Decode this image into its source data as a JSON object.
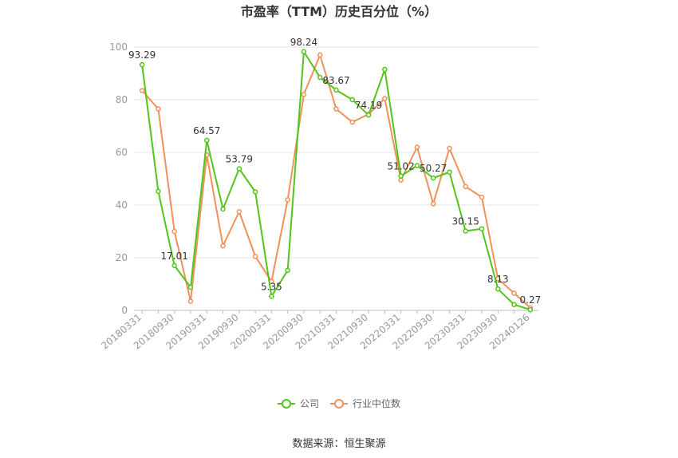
{
  "chart_data": {
    "type": "line",
    "title": "市盈率（TTM）历史百分位（%）",
    "source": "数据来源：恒生聚源",
    "ylim": [
      0,
      100
    ],
    "y_ticks": [
      "0",
      "20",
      "40",
      "60",
      "80",
      "100"
    ],
    "x_tick_labels": [
      "20180331",
      "20180930",
      "20190331",
      "20190930",
      "20200331",
      "20200930",
      "20210331",
      "20210930",
      "20220331",
      "20220930",
      "20230331",
      "20230930",
      "20240126"
    ],
    "x": [
      "20180331",
      "20180630",
      "20180930",
      "20181231",
      "20190331",
      "20190630",
      "20190930",
      "20191231",
      "20200331",
      "20200630",
      "20200930",
      "20201231",
      "20210331",
      "20210630",
      "20210930",
      "20211231",
      "20220331",
      "20220630",
      "20220930",
      "20221231",
      "20230331",
      "20230630",
      "20230930",
      "20231231",
      "20240126"
    ],
    "series": [
      {
        "name": "公司",
        "color": "#52c41a",
        "values": [
          93.29,
          45.2,
          17.01,
          8.8,
          64.57,
          38.5,
          53.79,
          45.0,
          5.35,
          15.2,
          98.24,
          88.5,
          83.67,
          80.0,
          74.19,
          91.5,
          51.02,
          55.0,
          50.27,
          52.5,
          30.15,
          31.0,
          8.13,
          2.2,
          0.27
        ]
      },
      {
        "name": "行业中位数",
        "color": "#f0905a",
        "values": [
          83.5,
          76.5,
          30.0,
          3.5,
          59.0,
          24.5,
          37.5,
          20.5,
          11.0,
          42.0,
          82.0,
          97.0,
          76.5,
          71.5,
          74.5,
          80.5,
          49.5,
          62.0,
          40.5,
          61.5,
          47.0,
          43.0,
          12.0,
          6.5,
          1.0
        ]
      }
    ],
    "data_labels": [
      {
        "series": 0,
        "index": 0,
        "text": "93.29"
      },
      {
        "series": 0,
        "index": 2,
        "text": "17.01"
      },
      {
        "series": 0,
        "index": 4,
        "text": "64.57"
      },
      {
        "series": 0,
        "index": 6,
        "text": "53.79"
      },
      {
        "series": 0,
        "index": 8,
        "text": "5.35"
      },
      {
        "series": 0,
        "index": 10,
        "text": "98.24"
      },
      {
        "series": 0,
        "index": 12,
        "text": "83.67"
      },
      {
        "series": 0,
        "index": 14,
        "text": "74.19"
      },
      {
        "series": 0,
        "index": 16,
        "text": "51.02"
      },
      {
        "series": 0,
        "index": 18,
        "text": "50.27"
      },
      {
        "series": 0,
        "index": 20,
        "text": "30.15"
      },
      {
        "series": 0,
        "index": 22,
        "text": "8.13"
      },
      {
        "series": 0,
        "index": 24,
        "text": "0.27"
      }
    ],
    "grid": true,
    "legend_position": "bottom"
  }
}
